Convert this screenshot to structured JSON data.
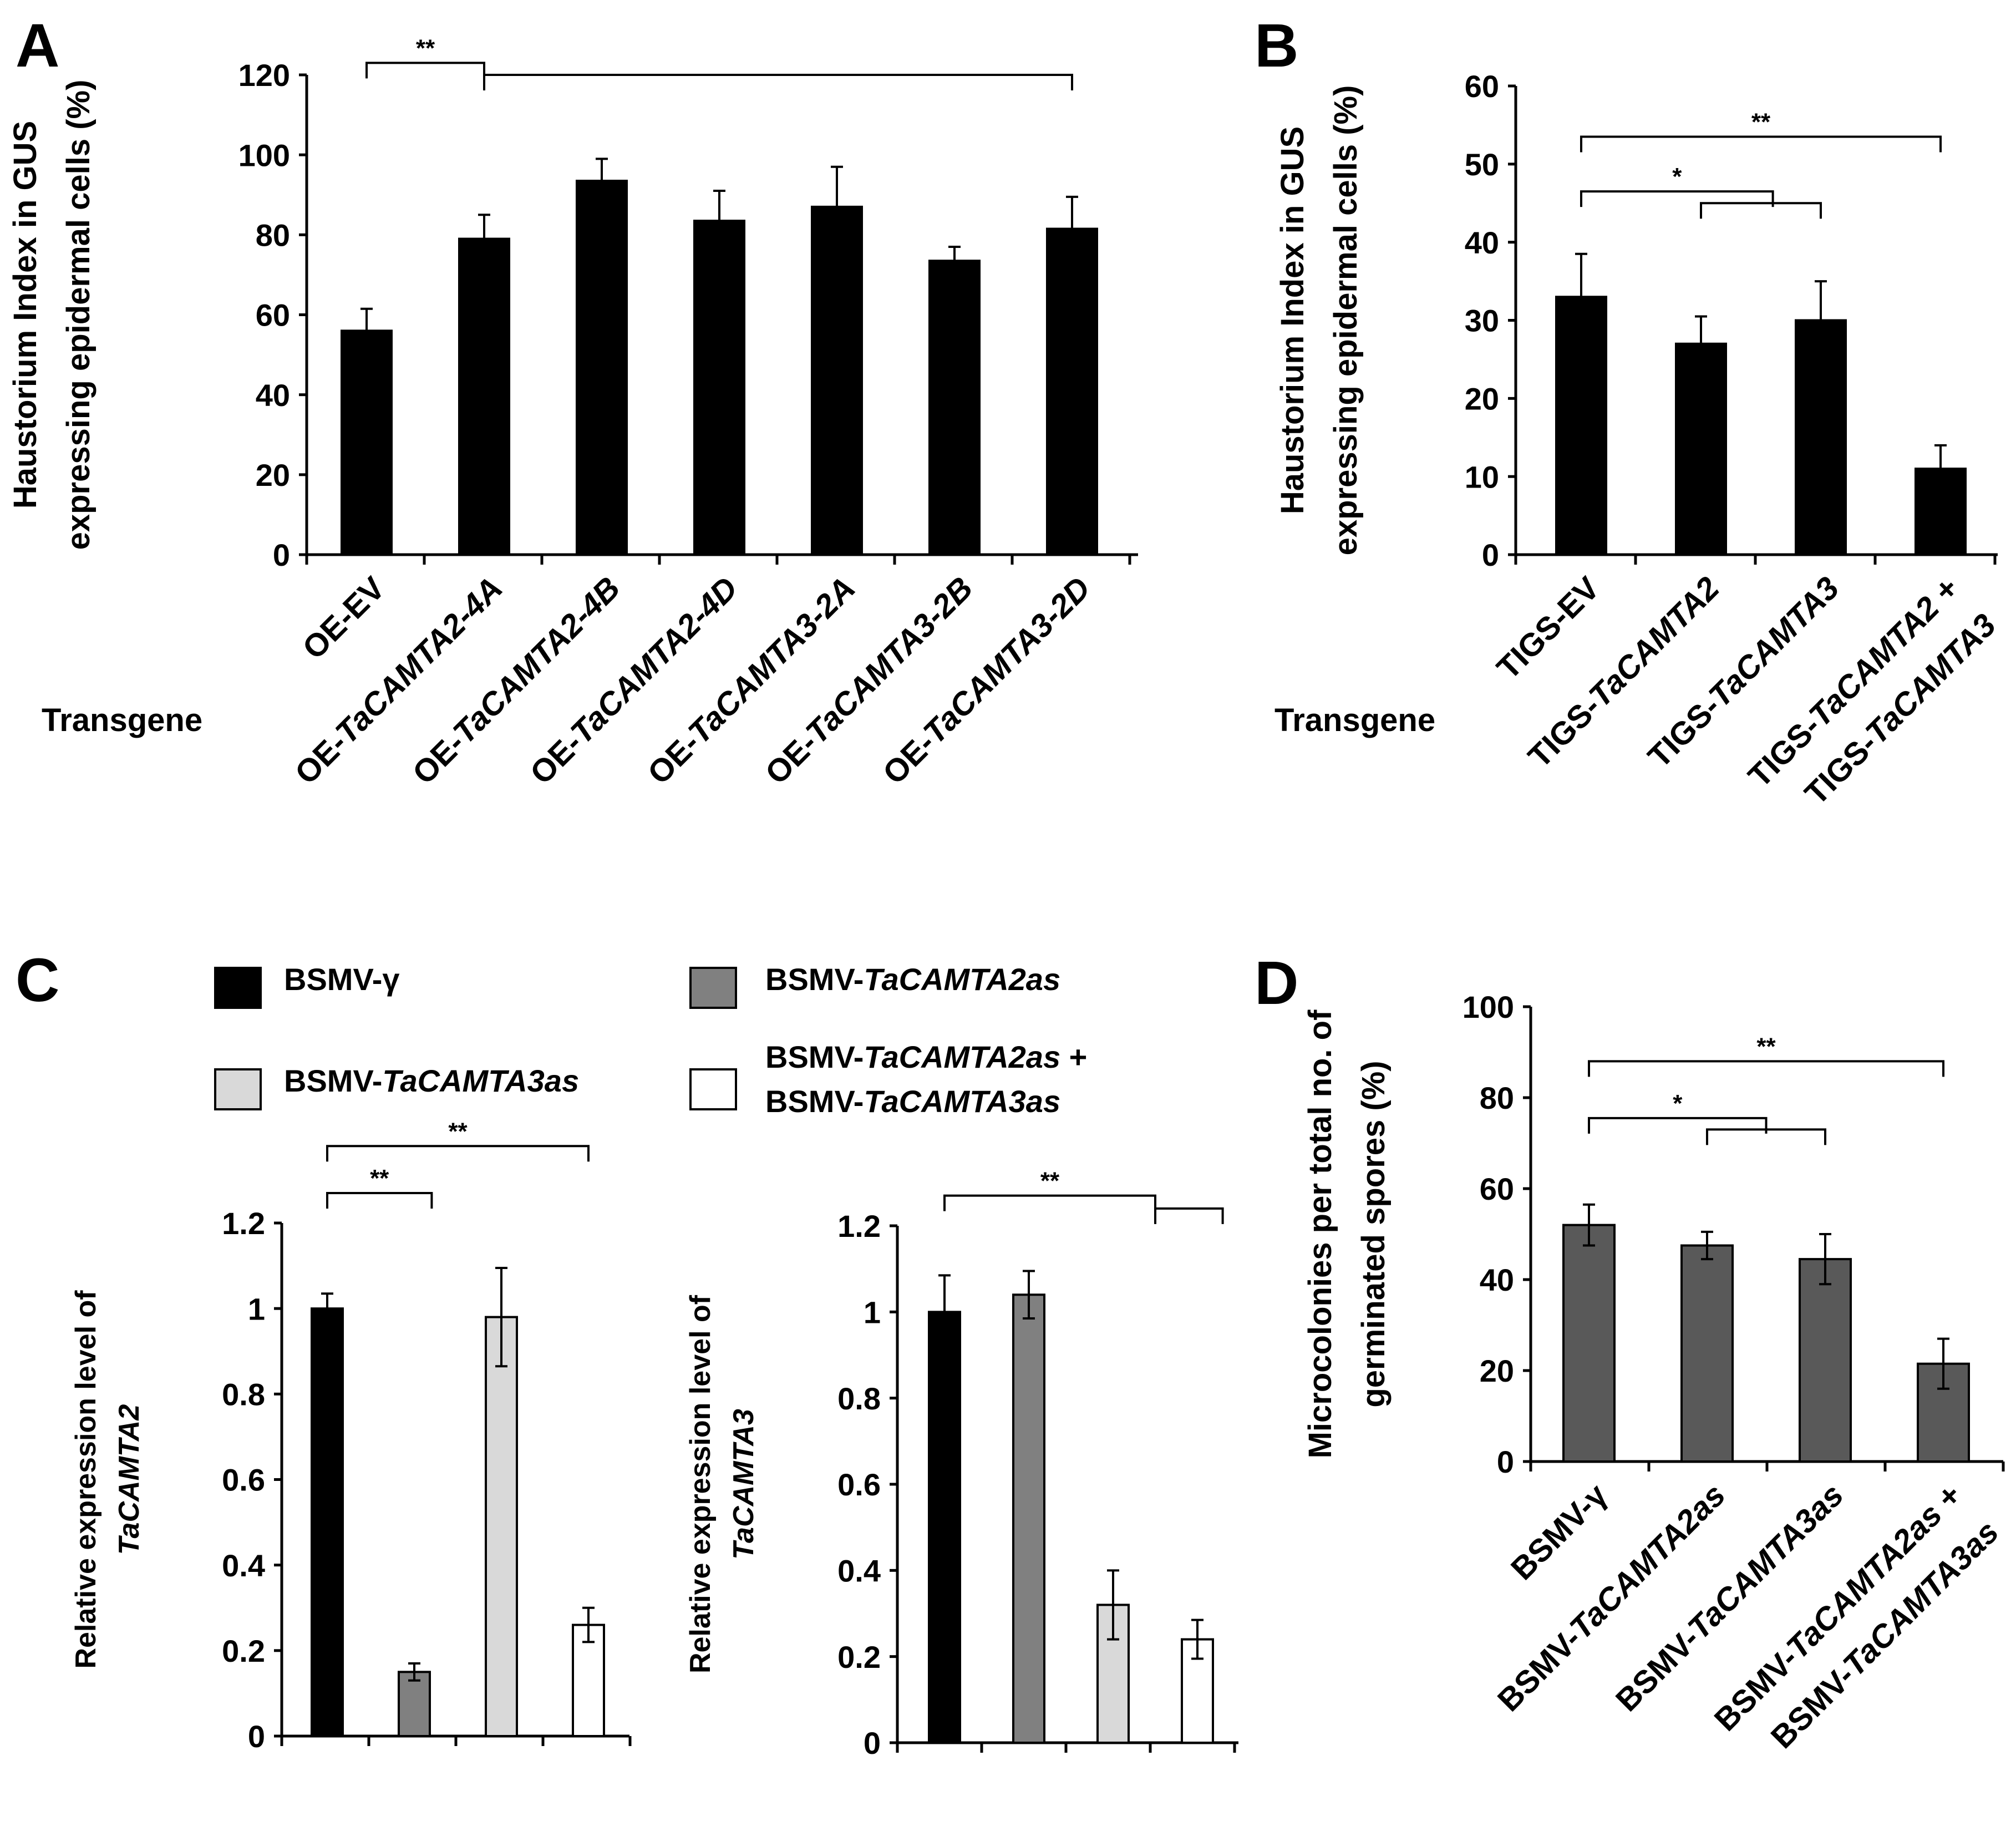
{
  "chart_data": [
    {
      "panel": "A",
      "type": "bar",
      "title": "",
      "ylabel": [
        "Haustorium Index in GUS",
        "expressing  epidermal cells (%)"
      ],
      "xlabel": "Transgene",
      "ylim": [
        0,
        120
      ],
      "yticks": [
        0,
        20,
        40,
        60,
        80,
        100,
        120
      ],
      "categories": [
        {
          "parts": [
            {
              "t": "OE-EV",
              "i": false
            }
          ]
        },
        {
          "parts": [
            {
              "t": "OE-",
              "i": false
            },
            {
              "t": "TaCAMTA2-4A",
              "i": true
            }
          ]
        },
        {
          "parts": [
            {
              "t": "OE-",
              "i": false
            },
            {
              "t": "TaCAMTA2-4B",
              "i": true
            }
          ]
        },
        {
          "parts": [
            {
              "t": "OE-",
              "i": false
            },
            {
              "t": "TaCAMTA2-4D",
              "i": true
            }
          ]
        },
        {
          "parts": [
            {
              "t": "OE-",
              "i": false
            },
            {
              "t": "TaCAMTA3-2A",
              "i": true
            }
          ]
        },
        {
          "parts": [
            {
              "t": "OE-",
              "i": false
            },
            {
              "t": "TaCAMTA3-2B",
              "i": true
            }
          ]
        },
        {
          "parts": [
            {
              "t": "OE-",
              "i": false
            },
            {
              "t": "TaCAMTA3-2D",
              "i": true
            }
          ]
        }
      ],
      "values": [
        56,
        79,
        93.5,
        83.5,
        87,
        73.5,
        81.5
      ],
      "errors": [
        5.5,
        6,
        5.5,
        7.5,
        10,
        3.5,
        8
      ],
      "colors": [
        "#000000",
        "#000000",
        "#000000",
        "#000000",
        "#000000",
        "#000000",
        "#000000"
      ],
      "annotations": [
        {
          "label": "**",
          "from": 0,
          "to": 1,
          "level": 123,
          "sub": {
            "from": 1,
            "to": 6,
            "level": 120
          }
        }
      ]
    },
    {
      "panel": "B",
      "type": "bar",
      "title": "",
      "ylabel": [
        "Haustorium Index in GUS",
        "expressing  epidermal cells (%)"
      ],
      "xlabel": "Transgene",
      "ylim": [
        0,
        60
      ],
      "yticks": [
        0,
        10,
        20,
        30,
        40,
        50,
        60
      ],
      "categories": [
        {
          "parts": [
            {
              "t": "TIGS-EV",
              "i": false
            }
          ]
        },
        {
          "parts": [
            {
              "t": "TIGS-",
              "i": false
            },
            {
              "t": "TaCAMTA2",
              "i": true
            }
          ]
        },
        {
          "parts": [
            {
              "t": "TIGS-",
              "i": false
            },
            {
              "t": "TaCAMTA3",
              "i": true
            }
          ]
        },
        {
          "parts": [
            {
              "t": "TIGS-",
              "i": false
            },
            {
              "t": "TaCAMTA2",
              "i": true
            },
            {
              "t": " +",
              "i": false
            }
          ],
          "parts2": [
            {
              "t": "TIGS-",
              "i": false
            },
            {
              "t": "TaCAMTA3",
              "i": true
            }
          ]
        }
      ],
      "values": [
        33,
        27,
        30,
        11
      ],
      "errors": [
        5.5,
        3.5,
        5,
        3
      ],
      "colors": [
        "#000000",
        "#000000",
        "#000000",
        "#000000"
      ],
      "annotations": [
        {
          "label": "**",
          "from": 0,
          "to": 3,
          "level": 53.5
        },
        {
          "label": "*",
          "from": 0,
          "to": 1.6,
          "level": 46.5,
          "sub": {
            "from": 1,
            "to": 2,
            "level": 45
          }
        }
      ]
    },
    {
      "panel": "C",
      "type": "bar",
      "title": "",
      "ylabel": [
        "Relative expression level of",
        "TaCAMTA2"
      ],
      "ylabel_italic": [
        false,
        true
      ],
      "xlabel": "",
      "ylim": [
        0,
        1.2
      ],
      "yticks": [
        "0",
        "0.2",
        "0.4",
        "0.6",
        "0.8",
        "1",
        "1.2"
      ],
      "categories": [
        "BSMV-γ",
        "BSMV-TaCAMTA2as",
        "BSMV-TaCAMTA3as",
        "BSMV-TaCAMTA2as + BSMV-TaCAMTA3as"
      ],
      "values": [
        1.0,
        0.15,
        0.98,
        0.26
      ],
      "errors": [
        0.035,
        0.02,
        0.115,
        0.04
      ],
      "colors": [
        "#000000",
        "#808080",
        "#d9d9d9",
        "#ffffff"
      ],
      "annotations": [
        {
          "label": "**",
          "from": 0,
          "to": 3,
          "level": 1.38
        },
        {
          "label": "**",
          "from": 0,
          "to": 1.2,
          "level": 1.27
        }
      ]
    },
    {
      "panel": "C",
      "type": "bar",
      "title": "",
      "ylabel": [
        "Relative expression level of",
        "TaCAMTA3"
      ],
      "ylabel_italic": [
        false,
        true
      ],
      "xlabel": "",
      "ylim": [
        0,
        1.2
      ],
      "yticks": [
        "0",
        "0.2",
        "0.4",
        "0.6",
        "0.8",
        "1",
        "1.2"
      ],
      "categories": [
        "BSMV-γ",
        "BSMV-TaCAMTA2as",
        "BSMV-TaCAMTA3as",
        "BSMV-TaCAMTA2as + BSMV-TaCAMTA3as"
      ],
      "values": [
        1.0,
        1.04,
        0.32,
        0.24
      ],
      "errors": [
        0.085,
        0.055,
        0.08,
        0.045
      ],
      "colors": [
        "#000000",
        "#808080",
        "#d9d9d9",
        "#ffffff"
      ],
      "annotations": [
        {
          "label": "**",
          "from": 0,
          "to": 2.5,
          "level": 1.27,
          "sub": {
            "from": 2.5,
            "to": 3.3,
            "level": 1.24
          }
        }
      ]
    },
    {
      "panel": "D",
      "type": "bar",
      "title": "",
      "ylabel": [
        "Microcolonies per total no. of",
        "germinated spores (%)"
      ],
      "xlabel": "",
      "ylim": [
        0,
        100
      ],
      "yticks": [
        0,
        20,
        40,
        60,
        80,
        100
      ],
      "categories": [
        {
          "parts": [
            {
              "t": "BSMV-γ",
              "i": false
            }
          ]
        },
        {
          "parts": [
            {
              "t": "BSMV-",
              "i": false
            },
            {
              "t": "TaCAMTA2as",
              "i": true
            }
          ]
        },
        {
          "parts": [
            {
              "t": "BSMV-",
              "i": false
            },
            {
              "t": "TaCAMTA3as",
              "i": true
            }
          ]
        },
        {
          "parts": [
            {
              "t": "BSMV-",
              "i": false
            },
            {
              "t": "TaCAMTA2as",
              "i": true
            },
            {
              "t": " +",
              "i": false
            }
          ],
          "parts2": [
            {
              "t": "BSMV-",
              "i": false
            },
            {
              "t": "TaCAMTA3as",
              "i": true
            }
          ]
        }
      ],
      "values": [
        52,
        47.5,
        44.5,
        21.5
      ],
      "errors": [
        4.5,
        3,
        5.5,
        5.5
      ],
      "colors": [
        "#595959",
        "#595959",
        "#595959",
        "#595959"
      ],
      "annotations": [
        {
          "label": "**",
          "from": 0,
          "to": 3,
          "level": 88
        },
        {
          "label": "*",
          "from": 0,
          "to": 1.5,
          "level": 75.5,
          "sub": {
            "from": 1,
            "to": 2,
            "level": 73
          }
        }
      ]
    }
  ],
  "panel_labels": [
    "A",
    "B",
    "C",
    "D"
  ],
  "legend": [
    {
      "parts": [
        {
          "t": "BSMV-γ",
          "i": false
        }
      ],
      "color": "#000000"
    },
    {
      "parts": [
        {
          "t": "BSMV-",
          "i": false
        },
        {
          "t": "TaCAMTA2as",
          "i": true
        }
      ],
      "color": "#808080"
    },
    {
      "parts": [
        {
          "t": "BSMV-",
          "i": false
        },
        {
          "t": "TaCAMTA3as",
          "i": true
        }
      ],
      "color": "#d9d9d9"
    },
    {
      "parts": [
        {
          "t": "BSMV-",
          "i": false
        },
        {
          "t": "TaCAMTA2as",
          "i": true
        },
        {
          "t": " +",
          "i": false
        }
      ],
      "parts2": [
        {
          "t": "BSMV-",
          "i": false
        },
        {
          "t": "TaCAMTA3as",
          "i": true
        }
      ],
      "color": "#ffffff"
    }
  ]
}
